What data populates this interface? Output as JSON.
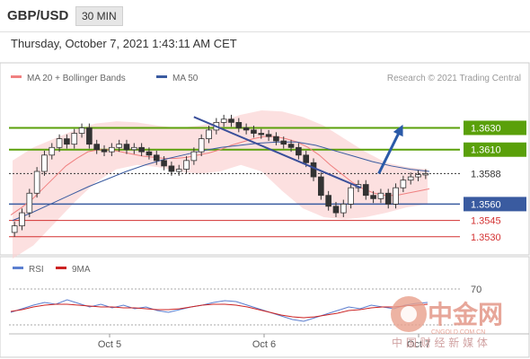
{
  "header": {
    "pair": "GBP/USD",
    "timeframe": "30 MIN"
  },
  "datetime": "Thursday, October 7, 2021 1:43:11 AM CET",
  "legend": [
    {
      "label": "MA 20 + Bollinger Bands",
      "color": "#f08080"
    },
    {
      "label": "MA 50",
      "color": "#3a5ba0"
    }
  ],
  "credit": "Research © 2021 Trading Central",
  "watermark": {
    "brand": "中金网",
    "domain": "CNGOLD.COM.CN",
    "tagline": "中 国 财 经 新 媒 体"
  },
  "chart_data": {
    "type": "candlestick",
    "y_range": [
      1.3515,
      1.3665
    ],
    "x_labels": [
      "Oct 5",
      "Oct 6",
      "Oct 7"
    ],
    "levels": [
      {
        "value": 1.363,
        "label": "1.3630",
        "style": "resistance",
        "color": "#5aa00a"
      },
      {
        "value": 1.361,
        "label": "1.3610",
        "style": "resistance",
        "color": "#5aa00a"
      },
      {
        "value": 1.3588,
        "label": "1.3588",
        "style": "last",
        "color": "#333333"
      },
      {
        "value": 1.356,
        "label": "1.3560",
        "style": "pivot",
        "color": "#3a5ba0"
      },
      {
        "value": 1.3545,
        "label": "1.3545",
        "style": "support",
        "color": "#d33030"
      },
      {
        "value": 1.353,
        "label": "1.3530",
        "style": "support",
        "color": "#d33030"
      }
    ],
    "close": [
      1.354,
      1.3552,
      1.357,
      1.359,
      1.3605,
      1.3612,
      1.362,
      1.3615,
      1.3625,
      1.363,
      1.3615,
      1.361,
      1.3608,
      1.3612,
      1.3615,
      1.361,
      1.3612,
      1.3608,
      1.3605,
      1.36,
      1.3595,
      1.359,
      1.3592,
      1.36,
      1.3608,
      1.362,
      1.3628,
      1.3635,
      1.3638,
      1.3635,
      1.363,
      1.3628,
      1.3625,
      1.3624,
      1.3622,
      1.3618,
      1.3615,
      1.3612,
      1.3605,
      1.3598,
      1.3585,
      1.3568,
      1.3558,
      1.3552,
      1.356,
      1.3575,
      1.3578,
      1.3568,
      1.3565,
      1.357,
      1.356,
      1.3575,
      1.3582,
      1.3585,
      1.3587,
      1.3588
    ],
    "ma20": [
      1.355,
      1.3557,
      1.3565,
      1.3575,
      1.3585,
      1.3595,
      1.3602,
      1.3608,
      1.361,
      1.361,
      1.3608,
      1.3606,
      1.3604,
      1.3603,
      1.3602,
      1.3602,
      1.3603,
      1.3605,
      1.3607,
      1.361,
      1.3614,
      1.3617,
      1.362,
      1.3622,
      1.3622,
      1.362,
      1.3617,
      1.3612,
      1.3605,
      1.3596,
      1.3588,
      1.358,
      1.3574,
      1.357,
      1.3568,
      1.3568,
      1.357,
      1.3572,
      1.3574
    ],
    "ma50": [
      1.3545,
      1.3552,
      1.356,
      1.3568,
      1.3576,
      1.3583,
      1.359,
      1.3596,
      1.3601,
      1.3605,
      1.3609,
      1.3612,
      1.3614,
      1.3616,
      1.3617,
      1.3617,
      1.3614,
      1.3609,
      1.3604,
      1.3599,
      1.3595,
      1.3592,
      1.359
    ],
    "bb_upper": [
      1.36,
      1.3612,
      1.362,
      1.3628,
      1.3634,
      1.3636,
      1.3635,
      1.3632,
      1.363,
      1.3632,
      1.3636,
      1.3642,
      1.3646,
      1.3645,
      1.364,
      1.3632,
      1.362,
      1.3608,
      1.3598,
      1.3594,
      1.3592
    ],
    "bb_lower": [
      1.351,
      1.3522,
      1.3542,
      1.3562,
      1.358,
      1.3592,
      1.3596,
      1.3594,
      1.359,
      1.3588,
      1.359,
      1.3596,
      1.359,
      1.3572,
      1.3556,
      1.3548,
      1.3546,
      1.3548,
      1.3552,
      1.3557,
      1.356
    ],
    "trendline": [
      [
        1.364,
        0.41
      ],
      [
        1.3575,
        0.78
      ]
    ],
    "projection": [
      [
        1.3588,
        0.82
      ],
      [
        1.363,
        0.87
      ]
    ],
    "rsi_panel": {
      "legend": [
        {
          "label": "RSI",
          "color": "#5b7fd0"
        },
        {
          "label": "9MA",
          "color": "#cc2222"
        }
      ],
      "level_70": "70",
      "rsi": [
        44,
        48,
        52,
        55,
        53,
        58,
        54,
        50,
        53,
        49,
        52,
        48,
        50,
        46,
        44,
        47,
        50,
        52,
        55,
        57,
        56,
        52,
        48,
        44,
        40,
        36,
        34,
        38,
        42,
        46,
        50,
        48,
        52,
        50,
        48,
        52,
        54,
        55
      ],
      "ma9": [
        45,
        47,
        50,
        52,
        53,
        53,
        52,
        51,
        50,
        50,
        49,
        49,
        48,
        47,
        47,
        48,
        50,
        52,
        53,
        53,
        52,
        50,
        47,
        44,
        41,
        39,
        38,
        39,
        41,
        43,
        46,
        47,
        49,
        50,
        50,
        51,
        52,
        53
      ]
    }
  }
}
